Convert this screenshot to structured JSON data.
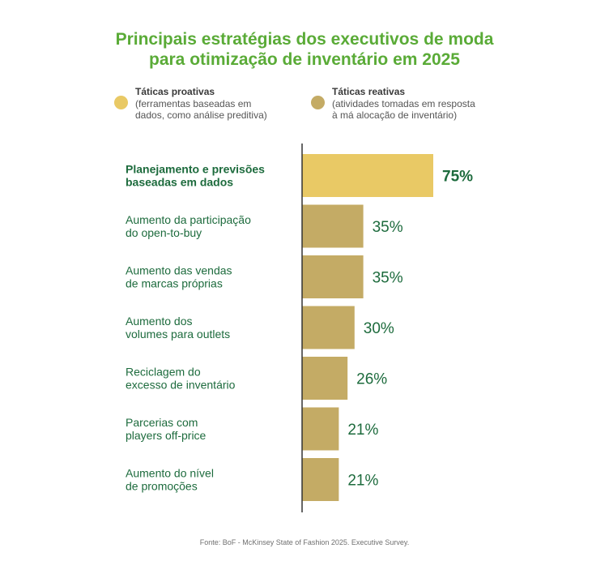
{
  "title": {
    "line1": "Principais estratégias dos executivos de moda",
    "line2": "para otimização de inventário em 2025"
  },
  "legend": {
    "proactive": {
      "title": "Táticas proativas",
      "desc1": "(ferramentas baseadas em",
      "desc2": "dados, como análise preditiva)",
      "color": "#e9c965"
    },
    "reactive": {
      "title": "Táticas reativas",
      "desc1": "(atividades tomadas em resposta",
      "desc2": "à má alocação de inventário)",
      "color": "#c4ab65"
    }
  },
  "colors": {
    "label_text": "#1d6b3d",
    "value_text": "#1d6b3d",
    "axis": "#333333"
  },
  "chart_data": {
    "type": "bar",
    "orientation": "horizontal",
    "categories": [
      [
        "Planejamento e previsões",
        "baseadas em dados"
      ],
      [
        "Aumento da participação",
        "do open-to-buy"
      ],
      [
        "Aumento das vendas",
        "de marcas próprias"
      ],
      [
        "Aumento dos",
        "volumes para outlets"
      ],
      [
        "Reciclagem do",
        "excesso de inventário"
      ],
      [
        "Parcerias com",
        "players off-price"
      ],
      [
        "Aumento do nível",
        "de promoções"
      ]
    ],
    "values": [
      75,
      35,
      35,
      30,
      26,
      21,
      21
    ],
    "value_labels": [
      "75%",
      "35%",
      "35%",
      "30%",
      "26%",
      "21%",
      "21%"
    ],
    "tactic_type": [
      "proactive",
      "reactive",
      "reactive",
      "reactive",
      "reactive",
      "reactive",
      "reactive"
    ],
    "xlim": [
      0,
      100
    ],
    "grid": false
  },
  "source": "Fonte: BoF - McKinsey State of Fashion 2025. Executive Survey."
}
